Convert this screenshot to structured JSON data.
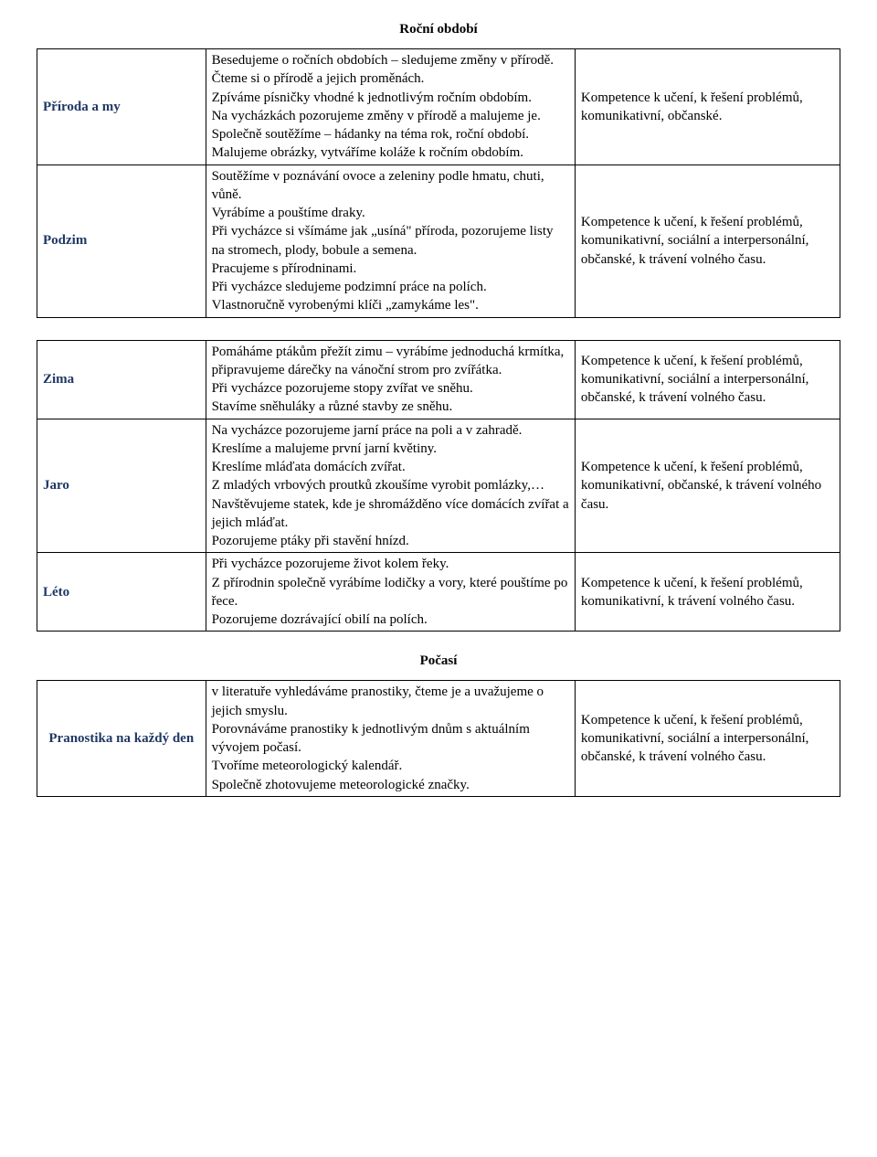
{
  "section1": {
    "title": "Roční období",
    "rows": [
      {
        "label": "Příroda a my",
        "activities": [
          "Besedujeme o ročních obdobích – sledujeme změny v přírodě.",
          "Čteme si o přírodě a jejich proměnách.",
          "Zpíváme písničky vhodné k jednotlivým ročním obdobím.",
          "Na vycházkách pozorujeme změny v přírodě a malujeme je.",
          "Společně soutěžíme – hádanky na téma rok, roční období.",
          "Malujeme obrázky, vytváříme koláže k ročním obdobím."
        ],
        "competence": "Kompetence k učení, k řešení problémů, komunikativní, občanské."
      },
      {
        "label": "Podzim",
        "activities": [
          "Soutěžíme v poznávání ovoce a zeleniny podle hmatu, chuti, vůně.",
          "Vyrábíme a pouštíme draky.",
          "Při vycházce si všímáme jak „usíná\" příroda, pozorujeme listy na stromech, plody, bobule a semena.",
          "Pracujeme s přírodninami.",
          "Při vycházce sledujeme podzimní práce na polích.",
          "Vlastnoručně vyrobenými klíči „zamykáme les\"."
        ],
        "competence": "Kompetence k učení, k řešení problémů, komunikativní, sociální a interpersonální, občanské, k trávení volného času."
      }
    ],
    "rows2": [
      {
        "label": "Zima",
        "activities": [
          "Pomáháme  ptákům přežít zimu – vyrábíme jednoduchá krmítka, připravujeme dárečky na vánoční strom pro zvířátka.",
          "Při vycházce pozorujeme stopy  zvířat ve sněhu.",
          "Stavíme sněhuláky a různé stavby ze sněhu."
        ],
        "competence": "Kompetence k učení, k řešení problémů, komunikativní, sociální a interpersonální, občanské, k trávení volného času."
      },
      {
        "label": "Jaro",
        "activities": [
          "Na vycházce pozorujeme jarní práce na poli a v zahradě.",
          "Kreslíme a malujeme první jarní květiny.",
          "Kreslíme mláďata domácích zvířat.",
          "Z mladých vrbových proutků zkoušíme vyrobit pomlázky,…",
          "Navštěvujeme statek, kde je shromážděno více domácích zvířat a jejich mláďat.",
          "Pozorujeme ptáky při stavění hnízd."
        ],
        "competence": "Kompetence k učení, k řešení problémů, komunikativní, občanské, k trávení volného času."
      },
      {
        "label": "Léto",
        "activities": [
          "Při vycházce pozorujeme život kolem řeky.",
          "Z přírodnin společně vyrábíme lodičky a vory, které pouštíme po řece.",
          "Pozorujeme dozrávající obilí na polích."
        ],
        "competence": "Kompetence k učení, k řešení problémů, komunikativní, k trávení volného času."
      }
    ]
  },
  "section2": {
    "title": "Počasí",
    "rows": [
      {
        "label": "Pranostika na každý den",
        "activities": [
          "v literatuře vyhledáváme pranostiky, čteme je a uvažujeme o jejich smyslu.",
          "Porovnáváme pranostiky k jednotlivým dnům s aktuálním vývojem počasí.",
          "Tvoříme meteorologický kalendář.",
          "Společně zhotovujeme meteorologické značky."
        ],
        "competence": "Kompetence k učení, k řešení problémů, komunikativní, sociální a interpersonální, občanské, k trávení volného času."
      }
    ]
  }
}
